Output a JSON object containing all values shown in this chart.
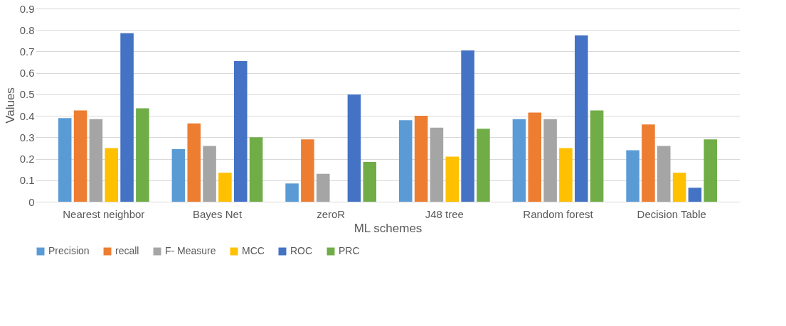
{
  "chart_data": {
    "type": "bar",
    "xlabel": "ML schemes",
    "ylabel": "Values",
    "categories": [
      "Nearest neighbor",
      "Bayes Net",
      "zeroR",
      "J48  tree",
      "Random forest",
      "Decision Table"
    ],
    "series": [
      {
        "name": "Precision",
        "color": "#5b9bd5",
        "values": [
          0.39,
          0.245,
          0.085,
          0.38,
          0.385,
          0.24
        ]
      },
      {
        "name": "recall",
        "color": "#ed7d31",
        "values": [
          0.425,
          0.365,
          0.29,
          0.4,
          0.415,
          0.36
        ]
      },
      {
        "name": "F- Measure",
        "color": "#a5a5a5",
        "values": [
          0.385,
          0.26,
          0.13,
          0.345,
          0.385,
          0.26
        ]
      },
      {
        "name": "MCC",
        "color": "#ffc000",
        "values": [
          0.25,
          0.135,
          0,
          0.21,
          0.25,
          0.135
        ]
      },
      {
        "name": "ROC",
        "color": "#4472c4",
        "values": [
          0.785,
          0.655,
          0.5,
          0.705,
          0.775,
          0.065
        ]
      },
      {
        "name": "PRC",
        "color": "#70ad47",
        "values": [
          0.435,
          0.3,
          0.185,
          0.34,
          0.425,
          0.29
        ]
      }
    ],
    "ylim": [
      0,
      0.9
    ],
    "yticks": [
      0,
      0.1,
      0.2,
      0.3,
      0.4,
      0.5,
      0.6,
      0.7,
      0.8,
      0.9
    ],
    "grid": "y",
    "legend": "bottom"
  }
}
